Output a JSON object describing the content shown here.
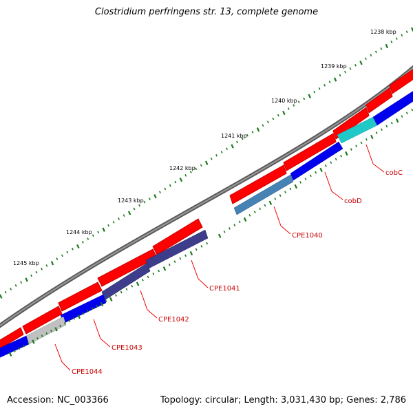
{
  "title": "Clostridium perfringens str. 13, complete genome",
  "accession": "Accession: NC_003366",
  "summary": "Topology: circular; Length: 3,031,430 bp; Genes: 2,786",
  "colors": {
    "backbone": "#808080",
    "forward_feature": "#ff0000",
    "gene_label": "#cc0000",
    "tick": "#1a7a1a"
  },
  "kbp_ticks": [
    "1238 kbp",
    "1239 kbp",
    "1240 kbp",
    "1241 kbp",
    "1242 kbp",
    "1243 kbp",
    "1244 kbp",
    "1245 kbp"
  ],
  "genes": [
    {
      "name": "cobC",
      "color": "#20c8c8"
    },
    {
      "name": "cobD",
      "color": "#0000ee"
    },
    {
      "name": "CPE1040",
      "color": "#4682b4"
    },
    {
      "name": "CPE1041",
      "color": "#3d3d8c"
    },
    {
      "name": "CPE1042",
      "color": "#3d3d8c"
    },
    {
      "name": "CPE1043",
      "color": "#0000ee"
    },
    {
      "name": "CPE1044",
      "color": "#c0c0c0"
    }
  ]
}
